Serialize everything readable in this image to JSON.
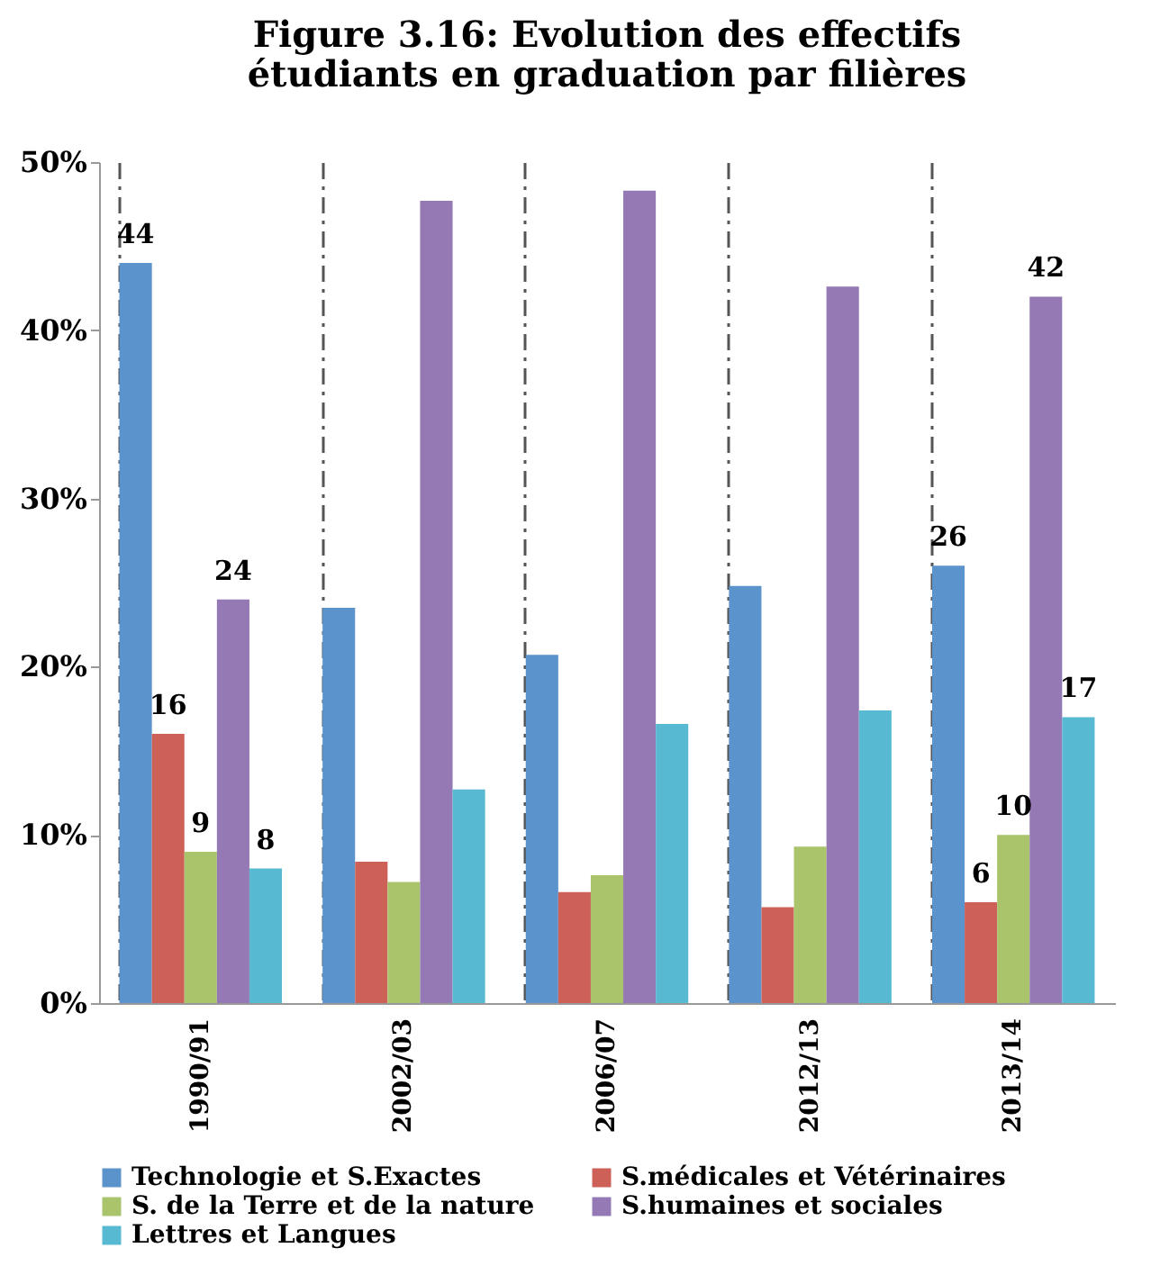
{
  "chart_data": {
    "type": "bar",
    "title": "Figure 3.16: Evolution des effectifs\nétudiants  en graduation par filières",
    "categories": [
      "1990/91",
      "2002/03",
      "2006/07",
      "2012/13",
      "2013/14"
    ],
    "series": [
      {
        "name": "Technologie et S.Exactes",
        "color": "#5b93cc",
        "values": [
          44,
          23.5,
          20.7,
          24.8,
          26
        ],
        "value_labels": [
          "44",
          null,
          null,
          null,
          "26"
        ]
      },
      {
        "name": "S.médicales et Vétérinaires",
        "color": "#cd6158",
        "values": [
          16,
          8.4,
          6.6,
          5.7,
          6
        ],
        "value_labels": [
          "16",
          null,
          null,
          null,
          "6"
        ]
      },
      {
        "name": "S. de la Terre et de la nature",
        "color": "#a9c46b",
        "values": [
          9,
          7.2,
          7.6,
          9.3,
          10
        ],
        "value_labels": [
          "9",
          null,
          null,
          null,
          "10"
        ]
      },
      {
        "name": "S.humaines et sociales",
        "color": "#9579b4",
        "values": [
          24,
          47.7,
          48.3,
          42.6,
          42
        ],
        "value_labels": [
          "24",
          null,
          null,
          null,
          "42"
        ]
      },
      {
        "name": "Lettres et Langues",
        "color": "#58b9d2",
        "values": [
          8,
          12.7,
          16.6,
          17.4,
          17
        ],
        "value_labels": [
          "8",
          null,
          null,
          null,
          "17"
        ]
      }
    ],
    "ylim": [
      0,
      50
    ],
    "yticks": [
      {
        "value": 0,
        "label": "0%"
      },
      {
        "value": 10,
        "label": "10%"
      },
      {
        "value": 20,
        "label": "20%"
      },
      {
        "value": 30,
        "label": "30%"
      },
      {
        "value": 40,
        "label": "40%"
      },
      {
        "value": 50,
        "label": "50%"
      }
    ],
    "grid": "x",
    "legend": "bottom"
  }
}
